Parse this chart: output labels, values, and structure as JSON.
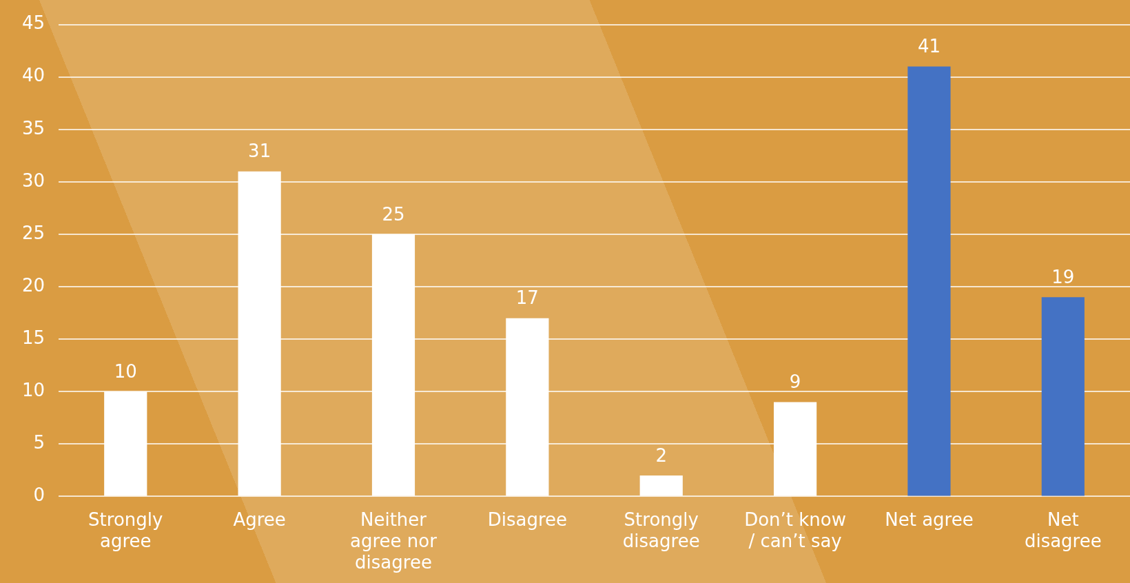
{
  "chart_data": {
    "type": "bar",
    "categories": [
      "Strongly agree",
      "Agree",
      "Neither agree nor disagree",
      "Disagree",
      "Strongly disagree",
      "Don’t know / can’t say",
      "Net agree",
      "Net disagree"
    ],
    "values": [
      10,
      31,
      25,
      17,
      2,
      9,
      41,
      19
    ],
    "colors": [
      "#ffffff",
      "#ffffff",
      "#ffffff",
      "#ffffff",
      "#ffffff",
      "#ffffff",
      "#4472c4",
      "#4472c4"
    ],
    "ylim": [
      0,
      45
    ],
    "yticks": [
      0,
      5,
      10,
      15,
      20,
      25,
      30,
      35,
      40,
      45
    ],
    "grid": "y",
    "data_labels": true,
    "legend": false
  }
}
